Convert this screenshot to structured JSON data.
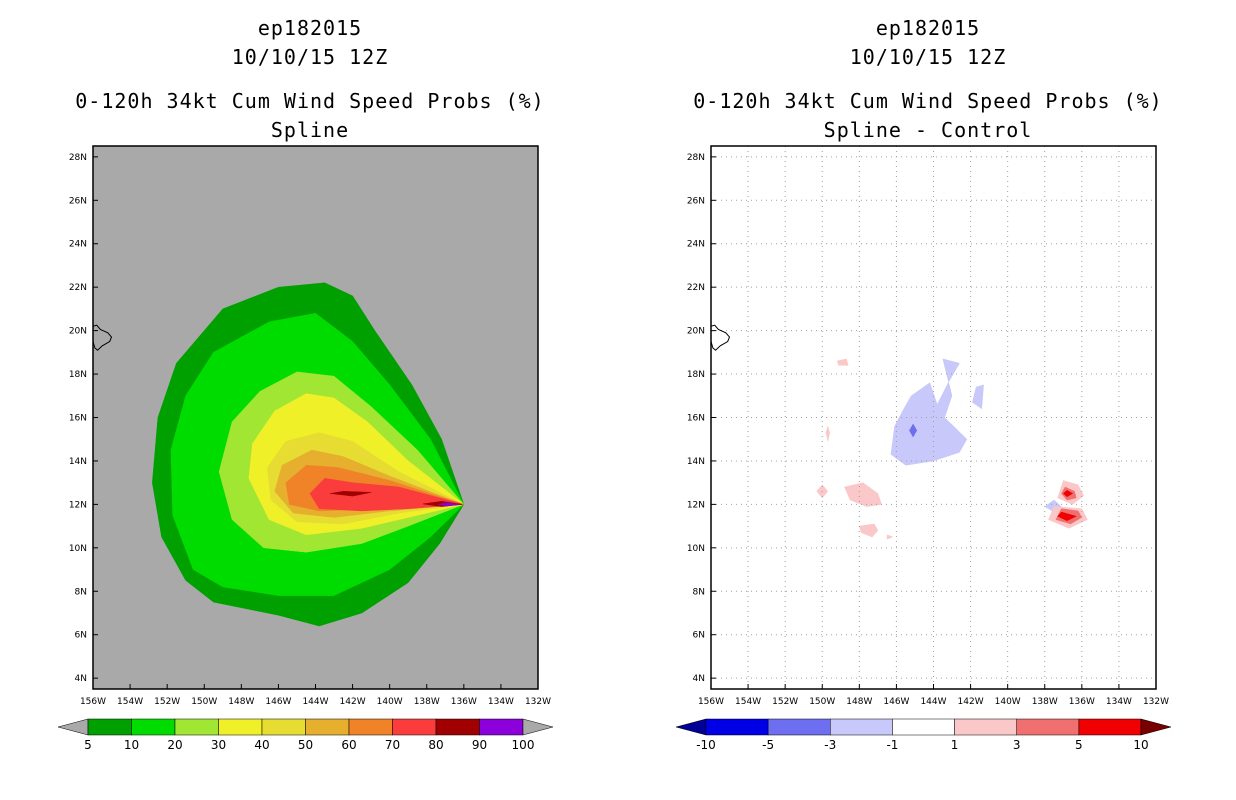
{
  "panels": [
    {
      "storm_id": "ep182015",
      "datetime": "10/10/15 12Z",
      "title": "0-120h 34kt Cum Wind Speed Probs (%)",
      "subtitle": "Spline"
    },
    {
      "storm_id": "ep182015",
      "datetime": "10/10/15 12Z",
      "title": "0-120h 34kt Cum Wind Speed Probs (%)",
      "subtitle": "Spline - Control"
    }
  ],
  "chart_data": [
    {
      "type": "heatmap",
      "title": "0-120h 34kt Cum Wind Speed Probs (%)",
      "subtitle": "Spline",
      "background_color": "#a9a9a9",
      "x_ticks": [
        "156W",
        "154W",
        "152W",
        "150W",
        "148W",
        "146W",
        "144W",
        "142W",
        "140W",
        "138W",
        "136W",
        "134W",
        "132W"
      ],
      "y_ticks": [
        "4N",
        "6N",
        "8N",
        "10N",
        "12N",
        "14N",
        "16N",
        "18N",
        "20N",
        "22N",
        "24N",
        "26N",
        "28N"
      ],
      "xlim": [
        -156,
        -132
      ],
      "ylim": [
        3.5,
        28.5
      ],
      "grid": false,
      "storm_center": [
        -136.2,
        12.0
      ],
      "colorbar": {
        "labels": [
          "5",
          "10",
          "20",
          "30",
          "40",
          "50",
          "60",
          "70",
          "80",
          "90",
          "100"
        ],
        "colors": [
          "#00a000",
          "#00dc00",
          "#a0e632",
          "#f0f028",
          "#e6dc32",
          "#e6af2d",
          "#f08228",
          "#fa3c3c",
          "#a00000",
          "#8c00dc"
        ],
        "under_color": "#a9a9a9",
        "over_color": "#a9a9a9"
      },
      "contours": [
        {
          "level": "5",
          "color": "#00a000",
          "polygon": [
            [
              -136.0,
              12.0
            ],
            [
              -137.2,
              15.0
            ],
            [
              -138.8,
              17.5
            ],
            [
              -140.8,
              20.0
            ],
            [
              -142.0,
              21.6
            ],
            [
              -143.5,
              22.2
            ],
            [
              -146.0,
              22.0
            ],
            [
              -149.0,
              21.0
            ],
            [
              -151.5,
              18.5
            ],
            [
              -152.5,
              16.0
            ],
            [
              -152.8,
              13.0
            ],
            [
              -152.3,
              10.5
            ],
            [
              -151.0,
              8.5
            ],
            [
              -149.5,
              7.5
            ],
            [
              -146.0,
              6.9
            ],
            [
              -143.8,
              6.4
            ],
            [
              -141.5,
              7.0
            ],
            [
              -139.0,
              8.4
            ],
            [
              -137.3,
              10.2
            ]
          ]
        },
        {
          "level": "10",
          "color": "#00dc00",
          "polygon": [
            [
              -136.0,
              12.0
            ],
            [
              -137.8,
              15.0
            ],
            [
              -140.0,
              17.5
            ],
            [
              -142.0,
              19.5
            ],
            [
              -144.0,
              20.8
            ],
            [
              -146.5,
              20.4
            ],
            [
              -149.5,
              19.0
            ],
            [
              -151.0,
              17.0
            ],
            [
              -151.8,
              14.5
            ],
            [
              -151.7,
              11.5
            ],
            [
              -150.6,
              9.0
            ],
            [
              -149.0,
              8.2
            ],
            [
              -146.0,
              7.8
            ],
            [
              -143.0,
              7.8
            ],
            [
              -140.0,
              9.0
            ],
            [
              -137.8,
              10.5
            ]
          ]
        },
        {
          "level": "20",
          "color": "#a0e632",
          "polygon": [
            [
              -136.0,
              12.0
            ],
            [
              -138.5,
              14.5
            ],
            [
              -141.0,
              16.5
            ],
            [
              -143.0,
              17.9
            ],
            [
              -145.0,
              18.1
            ],
            [
              -147.0,
              17.2
            ],
            [
              -148.5,
              15.8
            ],
            [
              -149.2,
              13.5
            ],
            [
              -148.5,
              11.3
            ],
            [
              -146.8,
              10.0
            ],
            [
              -144.5,
              9.8
            ],
            [
              -141.5,
              10.2
            ],
            [
              -139.0,
              11.0
            ]
          ]
        },
        {
          "level": "30",
          "color": "#f0f028",
          "polygon": [
            [
              -136.0,
              12.0
            ],
            [
              -139.0,
              14.0
            ],
            [
              -141.2,
              15.8
            ],
            [
              -143.0,
              16.9
            ],
            [
              -144.5,
              17.1
            ],
            [
              -146.2,
              16.3
            ],
            [
              -147.4,
              14.8
            ],
            [
              -147.6,
              13.2
            ],
            [
              -146.5,
              11.3
            ],
            [
              -144.5,
              10.6
            ],
            [
              -141.5,
              10.9
            ],
            [
              -139.0,
              11.4
            ]
          ]
        },
        {
          "level": "40",
          "color": "#e6dc32",
          "polygon": [
            [
              -136.0,
              12.0
            ],
            [
              -139.5,
              13.5
            ],
            [
              -142.0,
              14.9
            ],
            [
              -143.8,
              15.3
            ],
            [
              -145.6,
              14.9
            ],
            [
              -146.6,
              13.7
            ],
            [
              -146.4,
              12.2
            ],
            [
              -145.0,
              11.2
            ],
            [
              -142.5,
              11.1
            ],
            [
              -139.5,
              11.6
            ]
          ]
        },
        {
          "level": "50",
          "color": "#e6af2d",
          "polygon": [
            [
              -136.0,
              12.0
            ],
            [
              -140.0,
              13.3
            ],
            [
              -142.5,
              14.2
            ],
            [
              -144.2,
              14.5
            ],
            [
              -145.8,
              13.8
            ],
            [
              -146.2,
              12.6
            ],
            [
              -145.2,
              11.6
            ],
            [
              -143.0,
              11.4
            ],
            [
              -140.0,
              11.7
            ]
          ]
        },
        {
          "level": "60",
          "color": "#f08228",
          "polygon": [
            [
              -136.0,
              12.0
            ],
            [
              -140.0,
              13.1
            ],
            [
              -142.8,
              13.7
            ],
            [
              -144.5,
              13.8
            ],
            [
              -145.6,
              13.0
            ],
            [
              -145.4,
              12.0
            ],
            [
              -143.8,
              11.7
            ],
            [
              -141.0,
              11.8
            ]
          ]
        },
        {
          "level": "70",
          "color": "#fa3c3c",
          "polygon": [
            [
              -136.0,
              12.0
            ],
            [
              -139.5,
              12.8
            ],
            [
              -142.0,
              13.0
            ],
            [
              -143.5,
              13.2
            ],
            [
              -144.3,
              12.5
            ],
            [
              -143.8,
              11.8
            ],
            [
              -141.5,
              11.7
            ],
            [
              -139.0,
              11.8
            ]
          ]
        },
        {
          "level": "80",
          "color": "#a00000",
          "polygon": [
            [
              -141.0,
              12.55
            ],
            [
              -142.5,
              12.6
            ],
            [
              -143.2,
              12.5
            ],
            [
              -142.0,
              12.38
            ]
          ]
        },
        {
          "level": "80",
          "color": "#a00000",
          "polygon": [
            [
              -136.1,
              12.0
            ],
            [
              -137.2,
              12.14
            ],
            [
              -138.2,
              12.02
            ],
            [
              -137.2,
              11.9
            ]
          ]
        },
        {
          "level": "90",
          "color": "#8c00dc",
          "polygon": [
            [
              -136.2,
              12.0
            ],
            [
              -136.9,
              12.07
            ],
            [
              -137.4,
              12.0
            ],
            [
              -136.9,
              11.93
            ]
          ]
        }
      ]
    },
    {
      "type": "heatmap",
      "title": "0-120h 34kt Cum Wind Speed Probs (%)",
      "subtitle": "Spline - Control",
      "background_color": "#ffffff",
      "x_ticks": [
        "156W",
        "154W",
        "152W",
        "150W",
        "148W",
        "146W",
        "144W",
        "142W",
        "140W",
        "138W",
        "136W",
        "134W",
        "132W"
      ],
      "y_ticks": [
        "4N",
        "6N",
        "8N",
        "10N",
        "12N",
        "14N",
        "16N",
        "18N",
        "20N",
        "22N",
        "24N",
        "26N",
        "28N"
      ],
      "xlim": [
        -156,
        -132
      ],
      "ylim": [
        3.5,
        28.5
      ],
      "grid": true,
      "colorbar": {
        "labels": [
          "-10",
          "-5",
          "-3",
          "-1",
          "1",
          "3",
          "5",
          "10"
        ],
        "colors": [
          "#0000e6",
          "#6e6ef0",
          "#c8c8fa",
          "#ffffff",
          "#fac8c8",
          "#f07070",
          "#f00000"
        ],
        "under_color": "#000096",
        "over_color": "#780000"
      },
      "contours": [
        {
          "level": "-3 to -1",
          "color": "#c8c8fa",
          "polygon": [
            [
              -145.2,
              17.0
            ],
            [
              -144.2,
              17.6
            ],
            [
              -143.8,
              16.6
            ],
            [
              -143.2,
              17.6
            ],
            [
              -142.6,
              18.5
            ],
            [
              -143.5,
              18.7
            ],
            [
              -143.0,
              17.0
            ],
            [
              -143.4,
              16.0
            ],
            [
              -142.2,
              15.0
            ],
            [
              -142.6,
              14.4
            ],
            [
              -144.0,
              14.0
            ],
            [
              -145.5,
              13.8
            ],
            [
              -146.3,
              14.3
            ],
            [
              -146.1,
              15.6
            ],
            [
              -145.6,
              16.4
            ]
          ]
        },
        {
          "level": "-3 to -1",
          "color": "#c8c8fa",
          "polygon": [
            [
              -141.7,
              17.4
            ],
            [
              -141.3,
              17.5
            ],
            [
              -141.4,
              16.4
            ],
            [
              -141.9,
              16.7
            ]
          ]
        },
        {
          "level": "-5 to -3",
          "color": "#6e6ef0",
          "polygon": [
            [
              -145.1,
              15.7
            ],
            [
              -144.9,
              15.4
            ],
            [
              -145.1,
              15.1
            ],
            [
              -145.3,
              15.4
            ]
          ]
        },
        {
          "level": "-3 to -1",
          "color": "#c8c8fa",
          "polygon": [
            [
              -137.5,
              12.2
            ],
            [
              -137.1,
              11.9
            ],
            [
              -137.6,
              11.7
            ],
            [
              -138.0,
              11.9
            ]
          ]
        },
        {
          "level": "1 to 3",
          "color": "#fac8c8",
          "polygon": [
            [
              -149.2,
              18.6
            ],
            [
              -148.7,
              18.7
            ],
            [
              -148.6,
              18.4
            ],
            [
              -149.1,
              18.4
            ]
          ]
        },
        {
          "level": "1 to 3",
          "color": "#fac8c8",
          "polygon": [
            [
              -149.7,
              15.6
            ],
            [
              -149.6,
              15.3
            ],
            [
              -149.7,
              14.9
            ],
            [
              -149.8,
              15.3
            ]
          ]
        },
        {
          "level": "1 to 3",
          "color": "#fac8c8",
          "polygon": [
            [
              -148.8,
              12.8
            ],
            [
              -147.8,
              13.0
            ],
            [
              -147.0,
              12.5
            ],
            [
              -146.8,
              12.0
            ],
            [
              -147.6,
              11.9
            ],
            [
              -148.5,
              12.2
            ]
          ]
        },
        {
          "level": "1 to 3",
          "color": "#fac8c8",
          "polygon": [
            [
              -150.0,
              12.9
            ],
            [
              -149.7,
              12.6
            ],
            [
              -150.0,
              12.3
            ],
            [
              -150.3,
              12.6
            ]
          ]
        },
        {
          "level": "1 to 3",
          "color": "#fac8c8",
          "polygon": [
            [
              -148.0,
              11.0
            ],
            [
              -147.2,
              11.1
            ],
            [
              -147.0,
              10.8
            ],
            [
              -147.3,
              10.5
            ],
            [
              -147.9,
              10.7
            ]
          ]
        },
        {
          "level": "1 to 3",
          "color": "#fac8c8",
          "polygon": [
            [
              -146.5,
              10.6
            ],
            [
              -146.2,
              10.5
            ],
            [
              -146.5,
              10.4
            ]
          ]
        },
        {
          "level": "1 to 3",
          "color": "#fac8c8",
          "polygon": [
            [
              -137.0,
              13.1
            ],
            [
              -136.2,
              12.9
            ],
            [
              -135.9,
              12.4
            ],
            [
              -136.5,
              12.0
            ],
            [
              -137.3,
              12.3
            ]
          ]
        },
        {
          "level": "1 to 3",
          "color": "#fac8c8",
          "polygon": [
            [
              -137.5,
              11.9
            ],
            [
              -136.0,
              11.8
            ],
            [
              -135.7,
              11.3
            ],
            [
              -136.7,
              10.9
            ],
            [
              -137.8,
              11.3
            ]
          ]
        },
        {
          "level": "3 to 5",
          "color": "#f07070",
          "polygon": [
            [
              -137.1,
              11.8
            ],
            [
              -136.2,
              11.7
            ],
            [
              -136.0,
              11.4
            ],
            [
              -136.6,
              11.1
            ],
            [
              -137.4,
              11.3
            ]
          ]
        },
        {
          "level": "3 to 5",
          "color": "#f07070",
          "polygon": [
            [
              -136.9,
              12.8
            ],
            [
              -136.4,
              12.6
            ],
            [
              -136.3,
              12.3
            ],
            [
              -136.8,
              12.2
            ],
            [
              -137.1,
              12.5
            ]
          ]
        },
        {
          "level": "5 to 10",
          "color": "#f00000",
          "polygon": [
            [
              -137.1,
              11.65
            ],
            [
              -136.3,
              11.45
            ],
            [
              -136.8,
              11.25
            ],
            [
              -137.3,
              11.45
            ]
          ]
        },
        {
          "level": "5 to 10",
          "color": "#f00000",
          "polygon": [
            [
              -136.8,
              12.65
            ],
            [
              -136.5,
              12.5
            ],
            [
              -136.8,
              12.35
            ],
            [
              -137.0,
              12.5
            ]
          ]
        }
      ]
    }
  ]
}
